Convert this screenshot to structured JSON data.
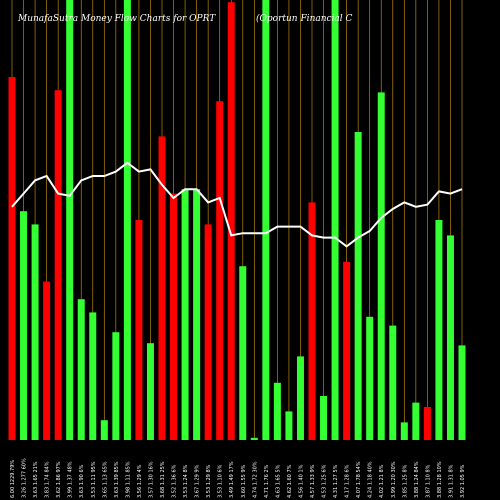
{
  "chart_data": {
    "type": "bar",
    "title": "MunafaSutra  Money Flow  Charts for OPRT",
    "subtitle": "(Oportun  Financial C",
    "ylim": [
      0,
      100
    ],
    "categories": [
      "6.00 1229.79%",
      "3.26 1.277 60%",
      "3.63 1.65 21%",
      "3.83 1.74 84%",
      "3.62 1.86 97%",
      "3.99 1.37 48%",
      "3.63 1.90 6%",
      "3.53 1.11 95%",
      "3.65 1.13 65%",
      "3.63 1.39 85%",
      "3.98 1.11 85%",
      "3.56 1.29 4%",
      "3.57 1.30 16%",
      "3.68 1.31 25%",
      "3.52 1.36 6%",
      "3.53 1.24 8%",
      "3.67 1.29 9%",
      "3.53 1.29 8%",
      "3.53 1.10 6%",
      "3.49 1.49 17%",
      "3.60 1.55 9%",
      "4.74 1.72 30%",
      "4.71 1.76 2%",
      "4.63 1.65 5%",
      "4.62 1.60 7%",
      "4.56 1.40 1%",
      "4.57 1.33 9%",
      "4.53 1.25 6%",
      "4.31 1.27 5%",
      "4.17 1.28 6%",
      "4.07 1.78 54%",
      "4.24 1.18 40%",
      "4.02 1.21 8%",
      "3.99 1.20 30%",
      "3.85 1.25 8%",
      "3.88 1.24 84%",
      "3.87 1.10 8%",
      "3.88 1.28 10%",
      "3.91 1.31 8%",
      "3.92 1.05 9%"
    ],
    "values": [
      82.5,
      52,
      49,
      36,
      79.5,
      100,
      32,
      29,
      4.5,
      24.5,
      100,
      50,
      22,
      69,
      56,
      57,
      57,
      49,
      77,
      99.5,
      39.5,
      0.5,
      100,
      13,
      6.5,
      19,
      54,
      10,
      100,
      40.5,
      70,
      28,
      79,
      26,
      4,
      8.5,
      7.5,
      50,
      46.5,
      21.5
    ],
    "colors": [
      "#ff0000",
      "#33ff33",
      "#33ff33",
      "#ff0000",
      "#ff0000",
      "#33ff33",
      "#33ff33",
      "#33ff33",
      "#33ff33",
      "#33ff33",
      "#33ff33",
      "#ff0000",
      "#33ff33",
      "#ff0000",
      "#ff0000",
      "#33ff33",
      "#33ff33",
      "#ff0000",
      "#ff0000",
      "#ff0000",
      "#33ff33",
      "#33ff33",
      "#33ff33",
      "#33ff33",
      "#33ff33",
      "#33ff33",
      "#ff0000",
      "#33ff33",
      "#33ff33",
      "#ff0000",
      "#33ff33",
      "#33ff33",
      "#33ff33",
      "#33ff33",
      "#33ff33",
      "#33ff33",
      "#ff0000",
      "#33ff33",
      "#33ff33",
      "#33ff33"
    ],
    "line": {
      "color": "#ffffff",
      "values": [
        53,
        56,
        59,
        60,
        56,
        55.5,
        59,
        60,
        60,
        61,
        63,
        61,
        61.5,
        58,
        55,
        57,
        57,
        54,
        55,
        46.5,
        47,
        47,
        47,
        48.5,
        48.5,
        48.5,
        46.5,
        46,
        46,
        44,
        46,
        47.5,
        50.5,
        52.5,
        54,
        53,
        53.5,
        56.5,
        56,
        57
      ]
    },
    "gridline_color": "#b8860b"
  }
}
